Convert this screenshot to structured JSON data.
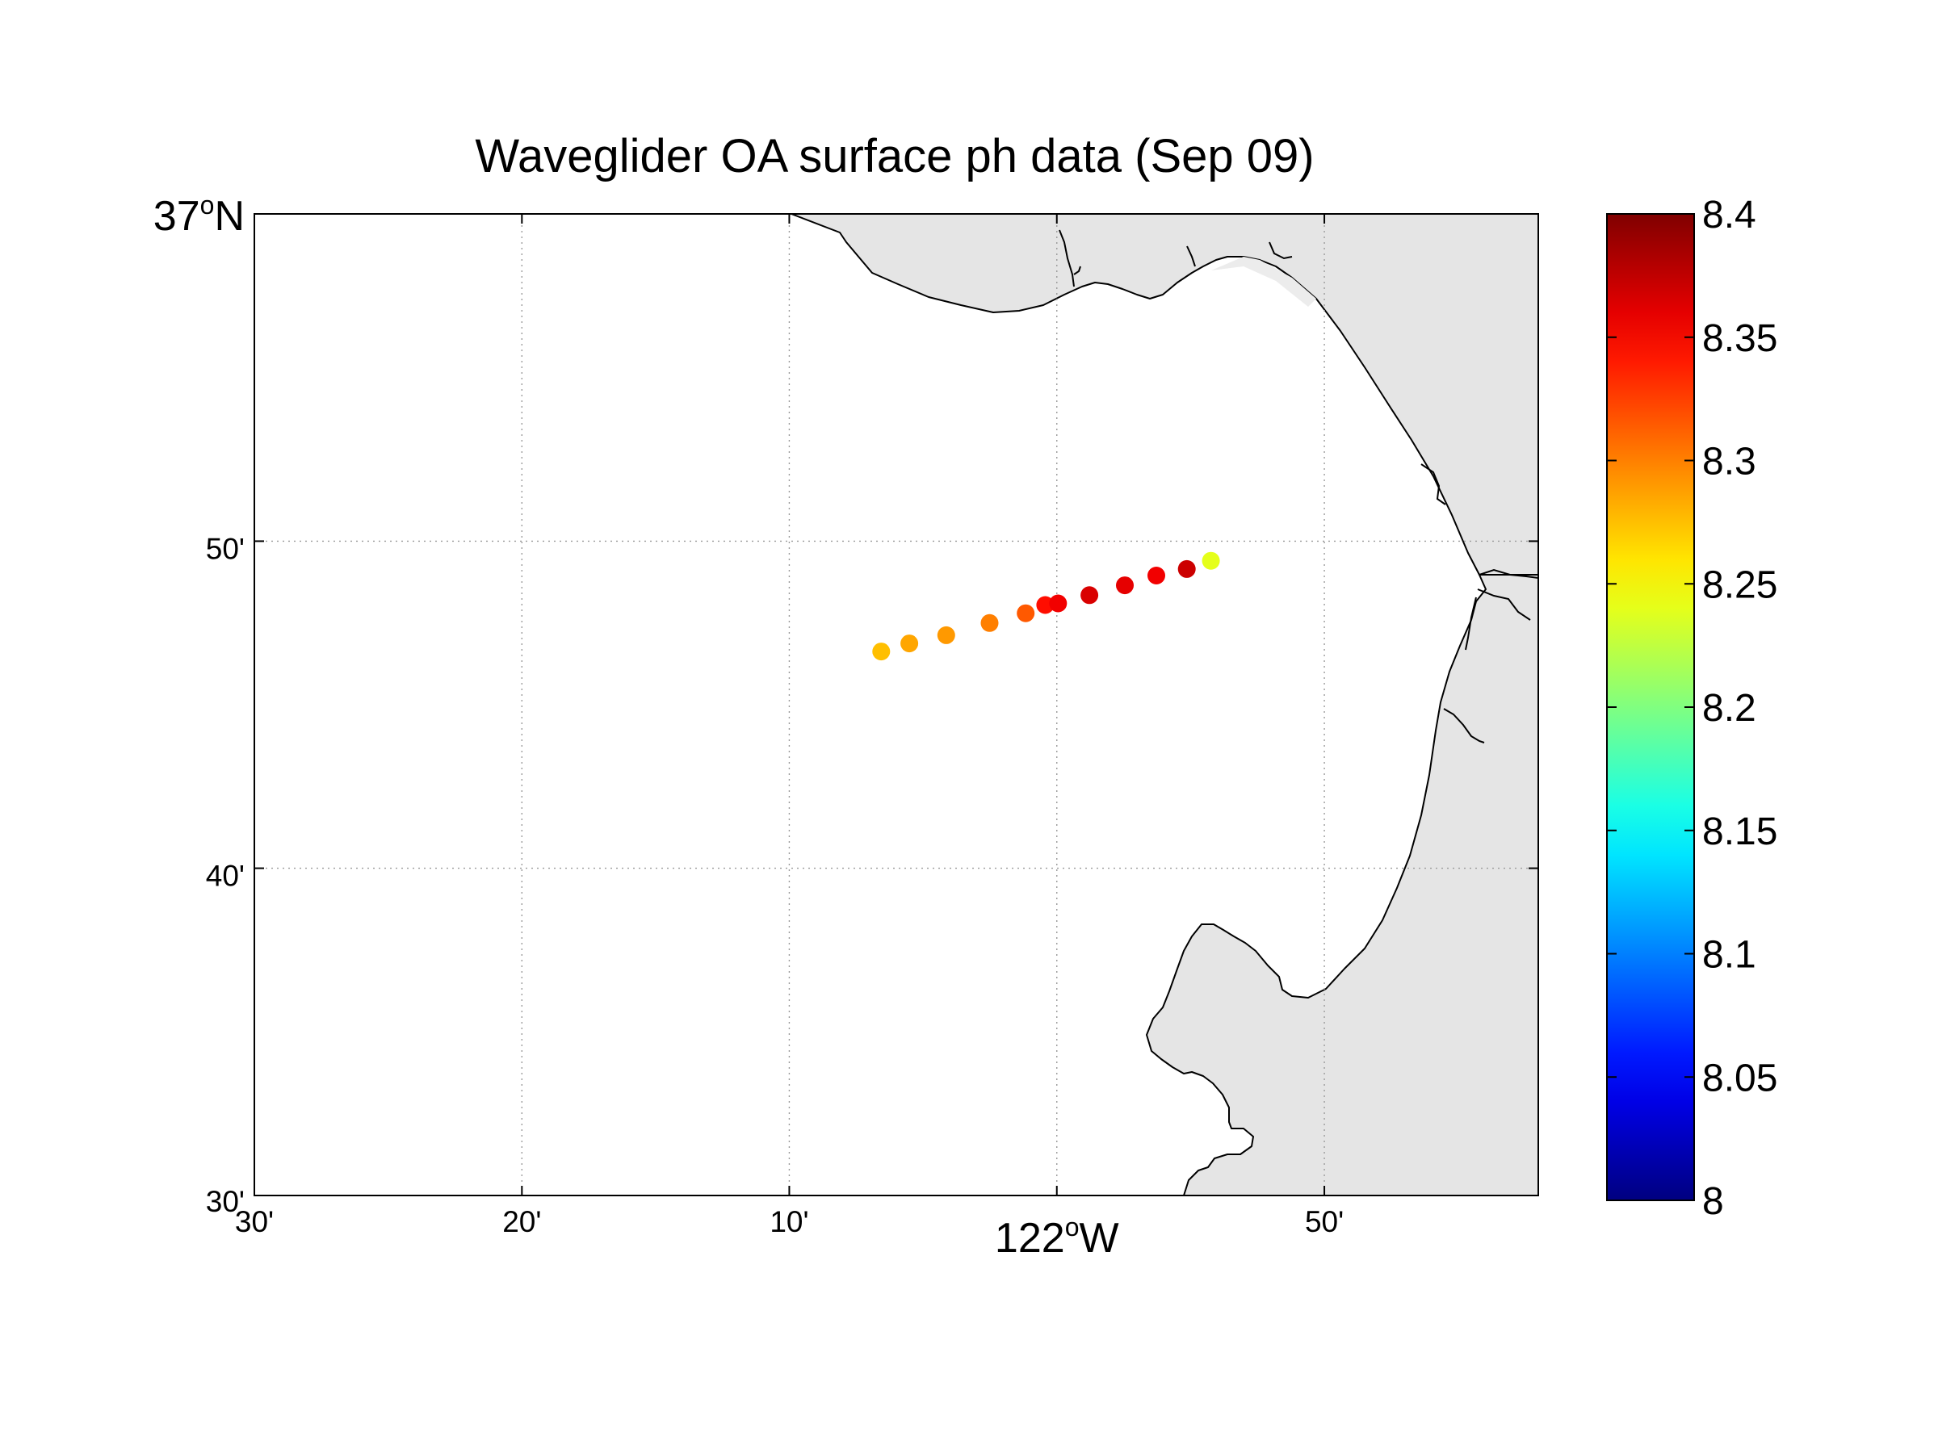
{
  "title": "Waveglider OA surface ph data (Sep 09)",
  "chart_data": {
    "type": "scatter",
    "title": "Waveglider OA surface ph data (Sep 09)",
    "xlim": [
      -122.5,
      -121.7
    ],
    "ylim": [
      36.5,
      37.0
    ],
    "grid": true,
    "x_ticks": [
      {
        "value": -122.5,
        "label": "30'"
      },
      {
        "value": -122.3333,
        "label": "20'"
      },
      {
        "value": -122.1667,
        "label": "10'"
      },
      {
        "value": -122.0,
        "label": "",
        "big_label": "122",
        "sup": "o",
        "hemi": "W"
      },
      {
        "value": -121.8333,
        "label": "50'"
      }
    ],
    "y_ticks": [
      {
        "value": 37.0,
        "label": "",
        "big_label": "37",
        "sup": "o",
        "hemi": "N"
      },
      {
        "value": 36.8333,
        "label": "50'"
      },
      {
        "value": 36.6667,
        "label": "40'"
      },
      {
        "value": 36.5,
        "label": "30'"
      }
    ],
    "colorbar": {
      "colormap": "jet",
      "range": [
        8.0,
        8.4
      ],
      "tick_labels": [
        "8",
        "8.05",
        "8.1",
        "8.15",
        "8.2",
        "8.25",
        "8.3",
        "8.35",
        "8.4"
      ]
    },
    "points": [
      {
        "lon": -122.1094,
        "lat": 36.7771,
        "ph": 8.275
      },
      {
        "lon": -122.0919,
        "lat": 36.7812,
        "ph": 8.285
      },
      {
        "lon": -122.0689,
        "lat": 36.7854,
        "ph": 8.29
      },
      {
        "lon": -122.0419,
        "lat": 36.7916,
        "ph": 8.3
      },
      {
        "lon": -122.0194,
        "lat": 36.7966,
        "ph": 8.315
      },
      {
        "lon": -122.0072,
        "lat": 36.8008,
        "ph": 8.345
      },
      {
        "lon": -121.9992,
        "lat": 36.8016,
        "ph": 8.355
      },
      {
        "lon": -121.9797,
        "lat": 36.8058,
        "ph": 8.365
      },
      {
        "lon": -121.9576,
        "lat": 36.8108,
        "ph": 8.36
      },
      {
        "lon": -121.938,
        "lat": 36.8158,
        "ph": 8.355
      },
      {
        "lon": -121.919,
        "lat": 36.8191,
        "ph": 8.37
      },
      {
        "lon": -121.904,
        "lat": 36.8233,
        "ph": 8.24
      }
    ]
  }
}
